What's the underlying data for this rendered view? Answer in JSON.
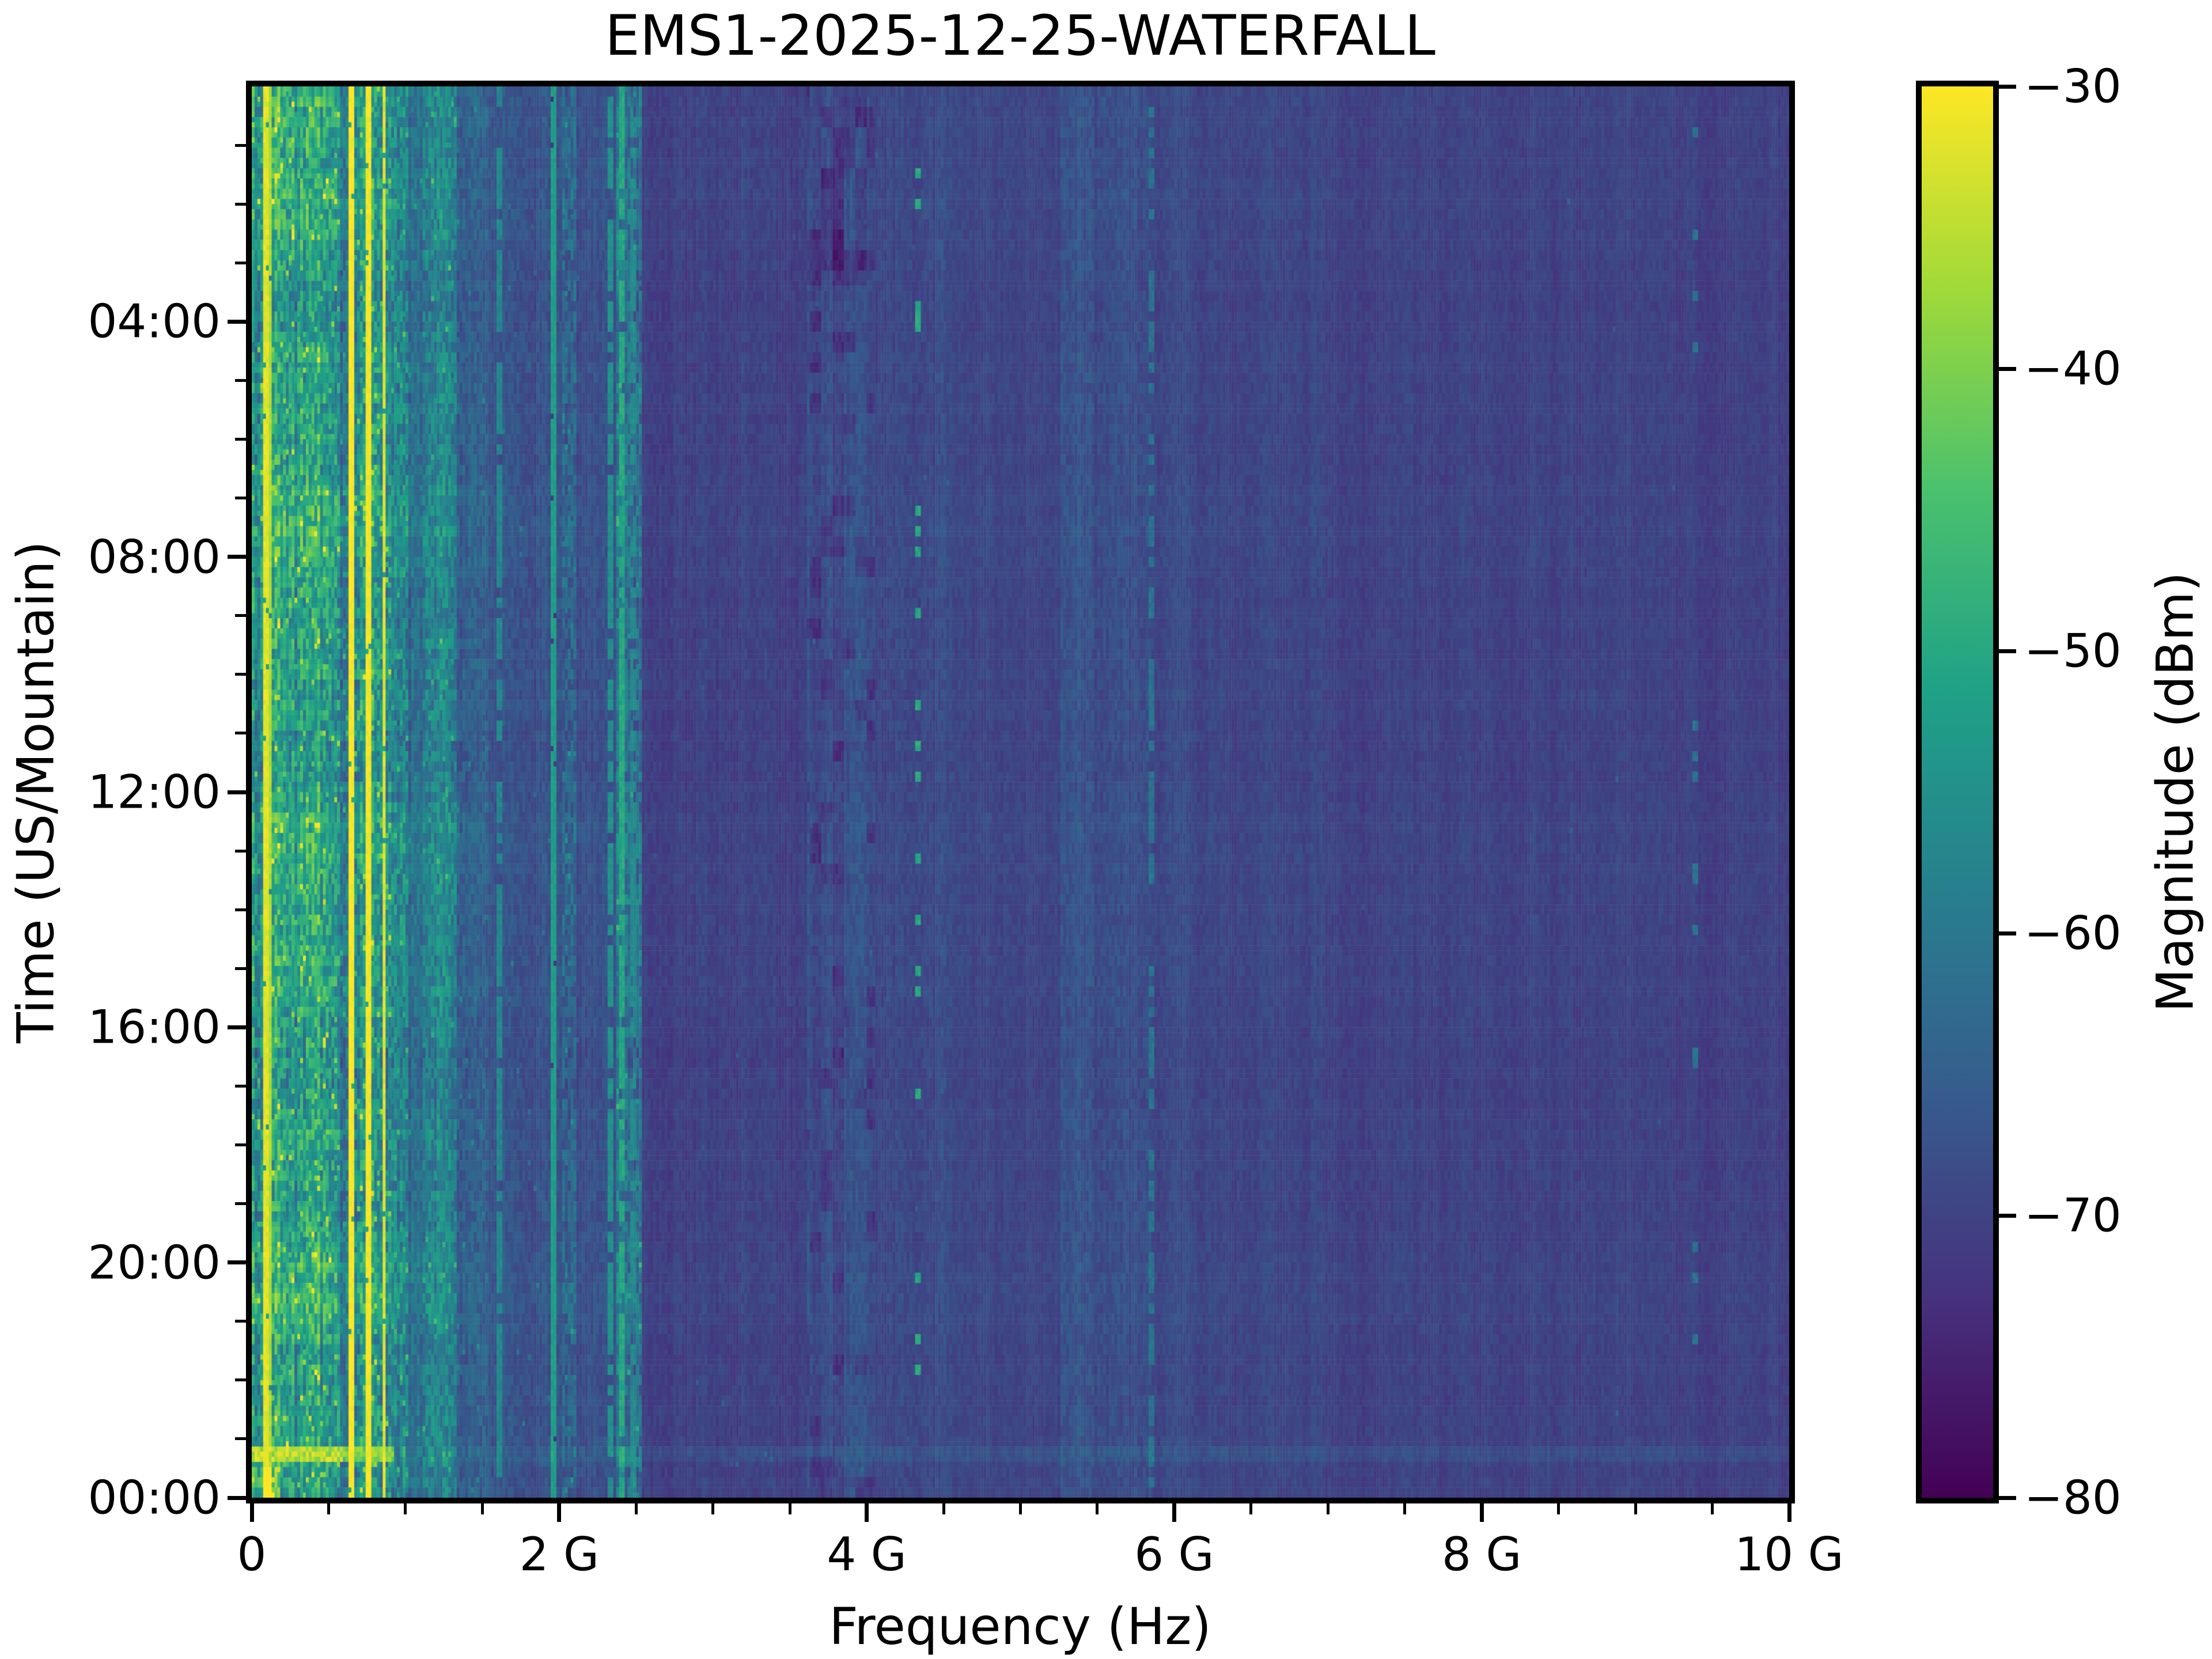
{
  "title": "EMS1-2025-12-25-WATERFALL",
  "x_axis": {
    "label": "Frequency (Hz)",
    "min_ghz": 0,
    "max_ghz": 10,
    "major_ticks_ghz": [
      0,
      2,
      4,
      6,
      8,
      10
    ],
    "major_tick_labels": [
      "0",
      "2 G",
      "4 G",
      "6 G",
      "8 G",
      "10 G"
    ],
    "minor_tick_step_ghz": 0.5
  },
  "y_axis": {
    "label": "Time (US/Mountain)",
    "span_hours": 24,
    "time_increases_downward": true,
    "major_tick_hours": [
      4,
      8,
      12,
      16,
      20,
      24
    ],
    "major_tick_labels": [
      "04:00",
      "08:00",
      "12:00",
      "16:00",
      "20:00",
      "00:00"
    ],
    "minor_tick_step_hours": 1
  },
  "colorbar": {
    "label": "Magnitude (dBm)",
    "max_dbm": -30,
    "min_dbm": -80,
    "tick_values_dbm": [
      -30,
      -40,
      -50,
      -60,
      -70,
      -80
    ],
    "tick_labels": [
      "−30",
      "−40",
      "−50",
      "−60",
      "−70",
      "−80"
    ],
    "colormap": "viridis",
    "viridis_stops": [
      "#440154",
      "#46327e",
      "#365c8d",
      "#277f8e",
      "#1fa187",
      "#4ac16d",
      "#a0da39",
      "#fde725"
    ]
  },
  "chart_data": {
    "type": "heatmap",
    "title": "EMS1-2025-12-25-WATERFALL",
    "xlabel": "Frequency (Hz)",
    "ylabel": "Time (US/Mountain)",
    "zlabel": "Magnitude (dBm)",
    "x_range_hz": [
      0,
      10000000000
    ],
    "y_range_time": [
      "00:00",
      "24:00"
    ],
    "z_range_dbm": [
      -80,
      -30
    ],
    "grid_cols": 540,
    "grid_rows": 276,
    "background_dbm": -70,
    "bands": [
      {
        "f0": 0.0,
        "f1": 0.565,
        "base": -52,
        "col_var": 7,
        "cell_var": 8,
        "speck_p": 0.05,
        "speck_db": 16,
        "row_w": 1.0
      },
      {
        "f0": 0.565,
        "f1": 0.625,
        "base": -60,
        "col_var": 3,
        "cell_var": 6,
        "speck_p": 0.05,
        "speck_db": 10,
        "row_w": 0.6
      },
      {
        "f0": 0.625,
        "f1": 0.9,
        "base": -54,
        "col_var": 5,
        "cell_var": 8,
        "speck_p": 0.08,
        "speck_db": 14,
        "row_w": 0.8
      },
      {
        "f0": 0.9,
        "f1": 1.02,
        "base": -56,
        "col_var": 4,
        "cell_var": 7,
        "speck_p": 0.05,
        "speck_db": 10,
        "row_w": 0.6
      },
      {
        "f0": 1.02,
        "f1": 1.12,
        "base": -63,
        "col_var": 2.5,
        "cell_var": 4,
        "speck_p": 0.02,
        "speck_db": 8,
        "row_w": 0.4
      },
      {
        "f0": 1.12,
        "f1": 1.34,
        "base": -59,
        "col_var": 4,
        "cell_var": 6,
        "speck_p": 0.03,
        "speck_db": 9,
        "row_w": 0.5
      },
      {
        "f0": 1.34,
        "f1": 1.53,
        "base": -64,
        "col_var": 2,
        "cell_var": 3.5,
        "speck_p": 0.015,
        "speck_db": 7,
        "row_w": 0.3
      },
      {
        "f0": 1.53,
        "f1": 2.02,
        "base": -67,
        "col_var": 1.6,
        "cell_var": 2.2,
        "speck_p": 0.006,
        "speck_db": 8,
        "row_w": 0.2
      },
      {
        "f0": 2.02,
        "f1": 2.11,
        "base": -63,
        "col_var": 2.5,
        "cell_var": 5,
        "speck_p": 0.04,
        "speck_db": 9,
        "row_w": 0.4
      },
      {
        "f0": 2.11,
        "f1": 2.37,
        "base": -68,
        "col_var": 1.5,
        "cell_var": 2,
        "speck_p": 0.003,
        "speck_db": 7,
        "row_w": 0.15
      },
      {
        "f0": 2.37,
        "f1": 2.53,
        "base": -62,
        "col_var": 3,
        "cell_var": 6,
        "speck_p": 0.05,
        "speck_db": 10,
        "row_w": 0.5
      },
      {
        "f0": 2.53,
        "f1": 3.62,
        "base": -70,
        "col_var": 1.4,
        "cell_var": 1.6,
        "speck_p": 0.001,
        "speck_db": 5,
        "row_w": 0.1
      },
      {
        "f0": 3.62,
        "f1": 4.06,
        "base": -68,
        "col_var": 1.8,
        "cell_var": 2,
        "speck_p": 0.002,
        "speck_db": 5,
        "row_w": 0.12,
        "dark_p": 0.15,
        "dark_db": 3.5,
        "top_dark": true
      },
      {
        "f0": 4.06,
        "f1": 4.56,
        "base": -68.6,
        "col_var": 1.5,
        "cell_var": 1.8,
        "speck_p": 0.001,
        "speck_db": 5,
        "row_w": 0.1
      },
      {
        "f0": 4.56,
        "f1": 5.26,
        "base": -69.4,
        "col_var": 1.3,
        "cell_var": 1.5,
        "speck_p": 0,
        "speck_db": 0,
        "row_w": 0.1
      },
      {
        "f0": 5.26,
        "f1": 5.86,
        "base": -67.6,
        "col_var": 1.7,
        "cell_var": 2,
        "speck_p": 0,
        "speck_db": 0,
        "row_w": 0.12
      },
      {
        "f0": 5.86,
        "f1": 6.3,
        "base": -69,
        "col_var": 1.4,
        "cell_var": 1.6,
        "speck_p": 0,
        "speck_db": 0,
        "row_w": 0.1
      },
      {
        "f0": 6.3,
        "f1": 7.1,
        "base": -69.3,
        "col_var": 1.3,
        "cell_var": 1.5,
        "speck_p": 0,
        "speck_db": 0,
        "row_w": 0.1
      },
      {
        "f0": 7.1,
        "f1": 9.32,
        "base": -70,
        "col_var": 1.2,
        "cell_var": 1.4,
        "speck_p": 0.0005,
        "speck_db": 6,
        "row_w": 0.08
      },
      {
        "f0": 9.32,
        "f1": 10.0,
        "base": -70.3,
        "col_var": 1.1,
        "cell_var": 1.3,
        "speck_p": 0,
        "speck_db": 0,
        "row_w": 0.08
      }
    ],
    "lines": [
      {
        "f_ghz": 0.095,
        "width_ghz": 0.012,
        "level_dbm": -32,
        "style": "solid"
      },
      {
        "f_ghz": 0.122,
        "width_ghz": 0.008,
        "level_dbm": -36,
        "style": "solid"
      },
      {
        "f_ghz": 0.645,
        "width_ghz": 0.03,
        "level_dbm": -30,
        "style": "solid"
      },
      {
        "f_ghz": 0.757,
        "width_ghz": 0.024,
        "level_dbm": -30.5,
        "style": "solid"
      },
      {
        "f_ghz": 0.862,
        "width_ghz": 0.016,
        "level_dbm": -32,
        "style": "solid"
      },
      {
        "f_ghz": 1.615,
        "width_ghz": 0.01,
        "level_dbm": -57,
        "style": "dashed",
        "dash_p": 0.75
      },
      {
        "f_ghz": 1.96,
        "width_ghz": 0.008,
        "level_dbm": -52,
        "style": "solid"
      },
      {
        "f_ghz": 2.335,
        "width_ghz": 0.01,
        "level_dbm": -55,
        "style": "dashed",
        "dash_p": 0.8
      },
      {
        "f_ghz": 2.412,
        "width_ghz": 0.012,
        "level_dbm": -50,
        "style": "dashed",
        "dash_p": 0.85
      },
      {
        "f_ghz": 2.48,
        "width_ghz": 0.01,
        "level_dbm": -56,
        "style": "dashed",
        "dash_p": 0.6
      },
      {
        "f_ghz": 4.33,
        "width_ghz": 0.028,
        "level_dbm": -50,
        "style": "dashed",
        "dash_p": 0.14
      },
      {
        "f_ghz": 5.855,
        "width_ghz": 0.018,
        "level_dbm": -61,
        "style": "dashed",
        "dash_p": 0.55
      },
      {
        "f_ghz": 9.385,
        "width_ghz": 0.012,
        "level_dbm": -61,
        "style": "dashed",
        "dash_p": 0.1
      }
    ],
    "events": [
      {
        "type": "row_streak",
        "t0": 0.962,
        "t1": 0.974,
        "f0": 0.0,
        "f1": 0.92,
        "level_dbm": -40,
        "spill_db": 2
      },
      {
        "type": "corner_bright",
        "t0": 0.975,
        "t1": 1.0,
        "f0": 0.0,
        "f1": 0.18,
        "boost_db": 8
      }
    ]
  }
}
